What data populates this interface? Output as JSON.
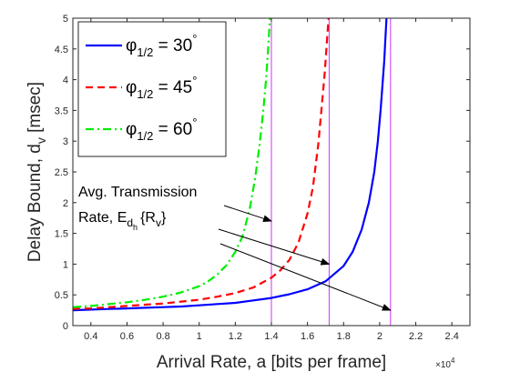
{
  "chart_data": {
    "type": "line",
    "xlabel": "Arrival Rate, a [bits per frame]",
    "ylabel": "Delay Bound, d",
    "ylabel_sub": "v",
    "ylabel_units": " [msec]",
    "x_exponent_base": "×10",
    "x_exponent_power": "4",
    "xlim": [
      3000,
      25000
    ],
    "ylim": [
      0,
      5
    ],
    "x_ticks": [
      4000,
      6000,
      8000,
      10000,
      12000,
      14000,
      16000,
      18000,
      20000,
      22000,
      24000
    ],
    "x_tick_labels": [
      "0.4",
      "0.6",
      "0.8",
      "1",
      "1.2",
      "1.4",
      "1.6",
      "1.8",
      "2",
      "2.2",
      "2.4"
    ],
    "y_ticks": [
      0,
      0.5,
      1,
      1.5,
      2,
      2.5,
      3,
      3.5,
      4,
      4.5,
      5
    ],
    "y_tick_labels": [
      "0",
      "0.5",
      "1",
      "1.5",
      "2",
      "2.5",
      "3",
      "3.5",
      "4",
      "4.5",
      "5"
    ],
    "grid": false,
    "legend_placement": "top-left",
    "series": [
      {
        "legend_symbol": "φ",
        "legend_sub": "1/2",
        "legend_value": " = 30",
        "legend_degree": "°",
        "color": "#0000ff",
        "dash": "solid",
        "capacity": 20600,
        "x": [
          3000,
          4000,
          5000,
          6000,
          7000,
          8000,
          9000,
          10000,
          11000,
          12000,
          13000,
          14000,
          15000,
          16000,
          17000,
          18000,
          18500,
          19000,
          19400,
          19700,
          19900,
          20050,
          20150,
          20250,
          20320,
          20380
        ],
        "y": [
          0.25,
          0.26,
          0.27,
          0.28,
          0.29,
          0.3,
          0.31,
          0.33,
          0.35,
          0.37,
          0.41,
          0.45,
          0.51,
          0.59,
          0.72,
          0.97,
          1.2,
          1.56,
          2.0,
          2.5,
          3.0,
          3.5,
          3.9,
          4.3,
          4.7,
          5.0
        ]
      },
      {
        "legend_symbol": "φ",
        "legend_sub": "1/2",
        "legend_value": " = 45",
        "legend_degree": "°",
        "color": "#ff0000",
        "dash": "dashed",
        "capacity": 17200,
        "x": [
          3000,
          4000,
          5000,
          6000,
          7000,
          8000,
          9000,
          10000,
          11000,
          12000,
          13000,
          14000,
          14500,
          15000,
          15500,
          16000,
          16300,
          16600,
          16800,
          16950,
          17050,
          17120,
          17170,
          17210
        ],
        "y": [
          0.27,
          0.28,
          0.3,
          0.32,
          0.34,
          0.36,
          0.39,
          0.42,
          0.47,
          0.53,
          0.62,
          0.78,
          0.9,
          1.07,
          1.35,
          1.82,
          2.25,
          2.95,
          3.6,
          4.1,
          4.5,
          4.8,
          5.0,
          5.0
        ]
      },
      {
        "legend_symbol": "φ",
        "legend_sub": "1/2",
        "legend_value": " = 60",
        "legend_degree": "°",
        "color": "#00ee00",
        "dash": "dashdot",
        "capacity": 14000,
        "x": [
          3000,
          4000,
          5000,
          6000,
          7000,
          8000,
          9000,
          10000,
          10500,
          11000,
          11500,
          12000,
          12400,
          12800,
          13100,
          13350,
          13550,
          13700,
          13800,
          13870,
          13920
        ],
        "y": [
          0.3,
          0.32,
          0.35,
          0.38,
          0.42,
          0.47,
          0.54,
          0.64,
          0.72,
          0.83,
          0.98,
          1.2,
          1.45,
          1.9,
          2.4,
          2.95,
          3.5,
          4.0,
          4.4,
          4.75,
          5.0
        ]
      }
    ],
    "vertical_lines": {
      "color": "#cc33ff",
      "x": [
        14000,
        17200,
        20600
      ]
    },
    "annotation": {
      "line1": "Avg. Transmission",
      "line2_prefix": "Rate, E",
      "line2_sub": "d",
      "line2_subsub": "h",
      "line2_brace_open": "{R",
      "line2_brace_sub": "v",
      "line2_brace_close": "}",
      "arrow_targets": [
        {
          "x": 14000,
          "y": 1.7
        },
        {
          "x": 17200,
          "y": 1.0
        },
        {
          "x": 20600,
          "y": 0.25
        }
      ]
    }
  }
}
